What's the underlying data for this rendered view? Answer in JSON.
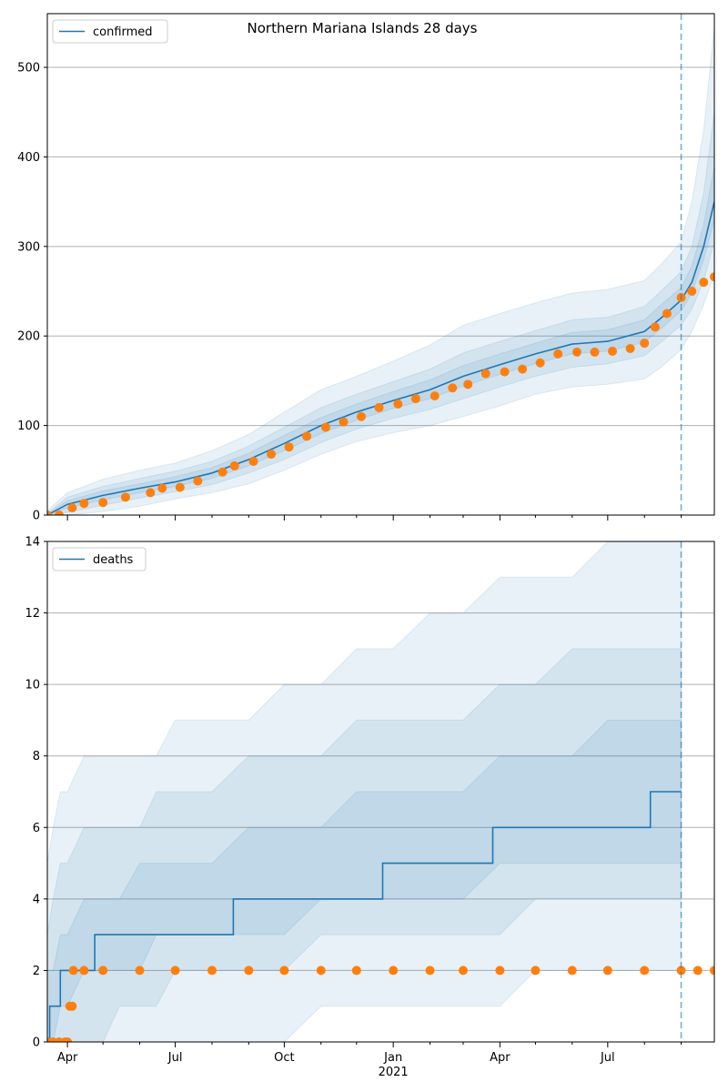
{
  "figure": {
    "title": "Northern Mariana Islands 28 days"
  },
  "colors": {
    "model_line": "#1f77b4",
    "observed_points": "#ff7f0e",
    "band": "#1f77b4",
    "grid": "#b0b0b0",
    "forecast_marker": "#1f77b4"
  },
  "x_axis": {
    "start_date": "2020-03-15",
    "end_date": "2021-09-29",
    "month_ticks": [
      {
        "date": "2020-04-01",
        "label": "Apr"
      },
      {
        "date": "2020-07-01",
        "label": "Jul"
      },
      {
        "date": "2020-10-01",
        "label": "Oct"
      },
      {
        "date": "2021-01-01",
        "label": "Jan",
        "sublabel": "2021"
      },
      {
        "date": "2021-04-01",
        "label": "Apr"
      },
      {
        "date": "2021-07-01",
        "label": "Jul"
      }
    ],
    "minor_ticks": [
      "2020-05-01",
      "2020-06-01",
      "2020-08-01",
      "2020-09-01",
      "2020-11-01",
      "2020-12-01",
      "2021-02-01",
      "2021-03-01",
      "2021-05-01",
      "2021-06-01",
      "2021-08-01",
      "2021-09-01"
    ],
    "forecast_start": "2021-09-01"
  },
  "chart_data": [
    {
      "type": "line",
      "legend": "confirmed",
      "legend_position": "top-left",
      "ylim": [
        0,
        560
      ],
      "yticks": [
        0,
        100,
        200,
        300,
        400,
        500
      ],
      "grid": "horizontal",
      "model": {
        "x": [
          "2020-03-15",
          "2020-04-01",
          "2020-05-01",
          "2020-06-01",
          "2020-07-01",
          "2020-08-01",
          "2020-09-01",
          "2020-10-01",
          "2020-11-01",
          "2020-12-01",
          "2021-01-01",
          "2021-02-01",
          "2021-03-01",
          "2021-04-01",
          "2021-05-01",
          "2021-06-01",
          "2021-07-01",
          "2021-08-01",
          "2021-08-15",
          "2021-09-01",
          "2021-09-10",
          "2021-09-20",
          "2021-09-29"
        ],
        "y": [
          0,
          12,
          22,
          30,
          37,
          47,
          62,
          80,
          100,
          115,
          128,
          140,
          155,
          168,
          180,
          191,
          194,
          205,
          220,
          240,
          260,
          300,
          350
        ]
      },
      "bands": [
        {
          "x": [
            "2020-03-15",
            "2020-04-01",
            "2020-05-01",
            "2020-06-01",
            "2020-07-01",
            "2020-08-01",
            "2020-09-01",
            "2020-10-01",
            "2020-11-01",
            "2020-12-01",
            "2021-01-01",
            "2021-02-01",
            "2021-03-01",
            "2021-04-01",
            "2021-05-01",
            "2021-06-01",
            "2021-07-01",
            "2021-08-01",
            "2021-08-15",
            "2021-09-01",
            "2021-09-10",
            "2021-09-20",
            "2021-09-29"
          ],
          "low": [
            0,
            0,
            4,
            10,
            18,
            25,
            35,
            50,
            68,
            82,
            92,
            100,
            110,
            122,
            135,
            143,
            146,
            152,
            165,
            185,
            205,
            235,
            270
          ],
          "high": [
            5,
            25,
            40,
            50,
            58,
            72,
            90,
            115,
            140,
            155,
            172,
            190,
            212,
            225,
            237,
            248,
            252,
            262,
            280,
            305,
            350,
            430,
            545
          ]
        },
        {
          "x": [
            "2020-03-15",
            "2020-04-01",
            "2020-05-01",
            "2020-06-01",
            "2020-07-01",
            "2020-08-01",
            "2020-09-01",
            "2020-10-01",
            "2020-11-01",
            "2020-12-01",
            "2021-01-01",
            "2021-02-01",
            "2021-03-01",
            "2021-04-01",
            "2021-05-01",
            "2021-06-01",
            "2021-07-01",
            "2021-08-01",
            "2021-08-15",
            "2021-09-01",
            "2021-09-10",
            "2021-09-20",
            "2021-09-29"
          ],
          "low": [
            0,
            3,
            11,
            19,
            26,
            34,
            47,
            62,
            81,
            96,
            108,
            118,
            130,
            143,
            155,
            165,
            169,
            178,
            193,
            212,
            230,
            262,
            305
          ],
          "high": [
            2,
            20,
            32,
            41,
            49,
            60,
            77,
            98,
            120,
            135,
            149,
            163,
            181,
            194,
            206,
            218,
            221,
            233,
            250,
            272,
            300,
            360,
            450
          ]
        },
        {
          "x": [
            "2020-03-15",
            "2020-04-01",
            "2020-05-01",
            "2020-06-01",
            "2020-07-01",
            "2020-08-01",
            "2020-09-01",
            "2020-10-01",
            "2020-11-01",
            "2020-12-01",
            "2021-01-01",
            "2021-02-01",
            "2021-03-01",
            "2021-04-01",
            "2021-05-01",
            "2021-06-01",
            "2021-07-01",
            "2021-08-01",
            "2021-08-15",
            "2021-09-01",
            "2021-09-10",
            "2021-09-20",
            "2021-09-29"
          ],
          "low": [
            0,
            8,
            17,
            25,
            32,
            41,
            55,
            72,
            91,
            106,
            119,
            130,
            144,
            157,
            169,
            180,
            183,
            193,
            208,
            228,
            248,
            285,
            330
          ],
          "high": [
            1,
            16,
            27,
            35,
            43,
            53,
            69,
            89,
            109,
            124,
            138,
            151,
            167,
            180,
            192,
            204,
            207,
            218,
            235,
            254,
            278,
            325,
            390
          ]
        }
      ],
      "observed": {
        "x": [
          "2020-03-15",
          "2020-03-25",
          "2020-04-05",
          "2020-04-15",
          "2020-05-01",
          "2020-05-20",
          "2020-06-10",
          "2020-06-20",
          "2020-07-05",
          "2020-07-20",
          "2020-08-10",
          "2020-08-20",
          "2020-09-05",
          "2020-09-20",
          "2020-10-05",
          "2020-10-20",
          "2020-11-05",
          "2020-11-20",
          "2020-12-05",
          "2020-12-20",
          "2021-01-05",
          "2021-01-20",
          "2021-02-05",
          "2021-02-20",
          "2021-03-05",
          "2021-03-20",
          "2021-04-05",
          "2021-04-20",
          "2021-05-05",
          "2021-05-20",
          "2021-06-05",
          "2021-06-20",
          "2021-07-05",
          "2021-07-20",
          "2021-08-01",
          "2021-08-10",
          "2021-08-20",
          "2021-09-01",
          "2021-09-10",
          "2021-09-20",
          "2021-09-29"
        ],
        "y": [
          0,
          0,
          8,
          13,
          14,
          20,
          25,
          30,
          31,
          38,
          48,
          55,
          60,
          68,
          76,
          88,
          98,
          104,
          110,
          120,
          124,
          130,
          133,
          142,
          146,
          158,
          160,
          163,
          170,
          180,
          182,
          182,
          183,
          186,
          192,
          210,
          225,
          243,
          250,
          260,
          266
        ]
      }
    },
    {
      "type": "line",
      "legend": "deaths",
      "legend_position": "top-left",
      "ylim": [
        0,
        14
      ],
      "yticks": [
        0,
        2,
        4,
        6,
        8,
        10,
        12,
        14
      ],
      "grid": "horizontal",
      "model": {
        "x": [
          "2020-03-15",
          "2020-03-17",
          "2020-03-17",
          "2020-03-26",
          "2020-03-26",
          "2020-04-24",
          "2020-04-24",
          "2020-08-19",
          "2020-08-19",
          "2020-12-23",
          "2020-12-23",
          "2021-03-26",
          "2021-03-26",
          "2021-08-06",
          "2021-08-06",
          "2021-09-01"
        ],
        "y": [
          0,
          0,
          1,
          1,
          2,
          2,
          3,
          3,
          4,
          4,
          5,
          5,
          6,
          6,
          7,
          7
        ]
      },
      "bands": [
        {
          "x": [
            "2020-03-15",
            "2020-03-20",
            "2020-03-26",
            "2020-04-01",
            "2020-04-15",
            "2020-05-01",
            "2020-05-15",
            "2020-06-01",
            "2020-06-15",
            "2020-07-01",
            "2020-08-01",
            "2020-09-01",
            "2020-10-01",
            "2020-11-01",
            "2020-12-01",
            "2021-01-01",
            "2021-02-01",
            "2021-03-01",
            "2021-04-01",
            "2021-05-01",
            "2021-06-01",
            "2021-07-01",
            "2021-08-01",
            "2021-09-01"
          ],
          "low": [
            0,
            0,
            0,
            0,
            0,
            0,
            0,
            0,
            0,
            0,
            0,
            0,
            0,
            1,
            1,
            1,
            1,
            1,
            1,
            2,
            2,
            2,
            2,
            2
          ],
          "high": [
            5,
            6,
            7,
            7,
            8,
            8,
            8,
            8,
            8,
            9,
            9,
            9,
            10,
            10,
            11,
            11,
            12,
            12,
            13,
            13,
            13,
            14,
            14,
            14
          ]
        },
        {
          "x": [
            "2020-03-15",
            "2020-03-20",
            "2020-03-26",
            "2020-04-01",
            "2020-04-15",
            "2020-05-01",
            "2020-05-15",
            "2020-06-01",
            "2020-06-15",
            "2020-07-01",
            "2020-08-01",
            "2020-09-01",
            "2020-10-01",
            "2020-11-01",
            "2020-12-01",
            "2021-01-01",
            "2021-02-01",
            "2021-03-01",
            "2021-04-01",
            "2021-05-01",
            "2021-06-01",
            "2021-07-01",
            "2021-08-01",
            "2021-09-01"
          ],
          "low": [
            0,
            0,
            0,
            0,
            0,
            0,
            1,
            1,
            1,
            2,
            2,
            2,
            2,
            3,
            3,
            3,
            3,
            3,
            3,
            4,
            4,
            4,
            4,
            4
          ],
          "high": [
            3,
            4,
            5,
            5,
            6,
            6,
            6,
            6,
            7,
            7,
            7,
            8,
            8,
            8,
            9,
            9,
            9,
            9,
            10,
            10,
            11,
            11,
            11,
            11
          ]
        },
        {
          "x": [
            "2020-03-15",
            "2020-03-20",
            "2020-03-26",
            "2020-04-01",
            "2020-04-15",
            "2020-05-01",
            "2020-05-15",
            "2020-06-01",
            "2020-06-15",
            "2020-07-01",
            "2020-08-01",
            "2020-09-01",
            "2020-10-01",
            "2020-11-01",
            "2020-12-01",
            "2021-01-01",
            "2021-02-01",
            "2021-03-01",
            "2021-04-01",
            "2021-05-01",
            "2021-06-01",
            "2021-07-01",
            "2021-08-01",
            "2021-09-01"
          ],
          "low": [
            0,
            0,
            1,
            1,
            2,
            2,
            2,
            2,
            3,
            3,
            3,
            3,
            3,
            4,
            4,
            4,
            4,
            4,
            5,
            5,
            5,
            5,
            5,
            5
          ],
          "high": [
            2,
            2,
            3,
            3,
            4,
            4,
            4,
            5,
            5,
            5,
            5,
            6,
            6,
            6,
            7,
            7,
            7,
            7,
            8,
            8,
            8,
            9,
            9,
            9
          ]
        }
      ],
      "observed": {
        "x": [
          "2020-03-15",
          "2020-03-20",
          "2020-03-25",
          "2020-03-30",
          "2020-04-01",
          "2020-04-03",
          "2020-04-05",
          "2020-04-06",
          "2020-04-15",
          "2020-05-01",
          "2020-06-01",
          "2020-07-01",
          "2020-08-01",
          "2020-09-01",
          "2020-10-01",
          "2020-11-01",
          "2020-12-01",
          "2021-01-01",
          "2021-02-01",
          "2021-03-01",
          "2021-04-01",
          "2021-05-01",
          "2021-06-01",
          "2021-07-01",
          "2021-08-01",
          "2021-09-01",
          "2021-09-15",
          "2021-09-29"
        ],
        "y": [
          0,
          0,
          0,
          0,
          0,
          1,
          1,
          2,
          2,
          2,
          2,
          2,
          2,
          2,
          2,
          2,
          2,
          2,
          2,
          2,
          2,
          2,
          2,
          2,
          2,
          2,
          2,
          2
        ]
      }
    }
  ]
}
